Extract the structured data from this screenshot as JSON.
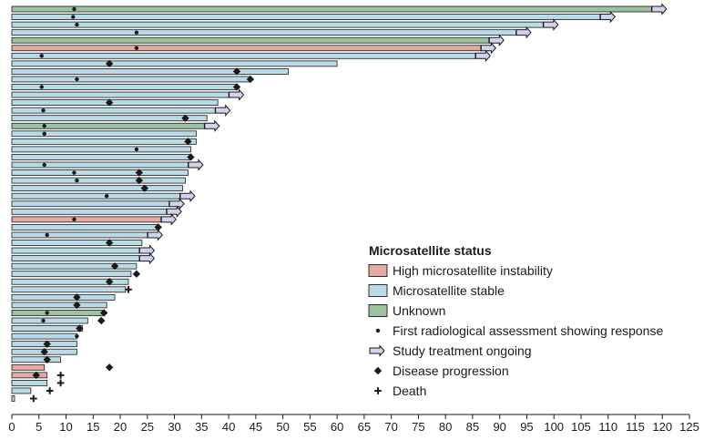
{
  "chart_data": {
    "type": "swimmer",
    "x_ticks": [
      0,
      5,
      10,
      15,
      20,
      25,
      30,
      35,
      40,
      45,
      50,
      55,
      60,
      65,
      70,
      75,
      80,
      85,
      90,
      95,
      100,
      105,
      110,
      115,
      120,
      125
    ],
    "xlim": [
      0,
      125
    ],
    "colors": {
      "msi_high": "#e4aaa4",
      "mss": "#b9dbe8",
      "unknown": "#9ec2a0",
      "outline": "#1a1a1a",
      "arrow_fill": "#cfd3ee"
    },
    "legend": {
      "title": "Microsatellite status",
      "entries": [
        {
          "key": "msi_high",
          "kind": "box",
          "label": "High microsatellite instability"
        },
        {
          "key": "mss",
          "kind": "box",
          "label": "Microsatellite stable"
        },
        {
          "key": "unknown",
          "kind": "box",
          "label": "Unknown"
        },
        {
          "key": "response",
          "kind": "dot",
          "label": "First radiological assessment showing response"
        },
        {
          "key": "ongoing",
          "kind": "arrow",
          "label": "Study treatment ongoing"
        },
        {
          "key": "progression",
          "kind": "diamond",
          "label": "Disease progression"
        },
        {
          "key": "death",
          "kind": "plus",
          "label": "Death"
        }
      ]
    },
    "patients": [
      {
        "status": "unknown",
        "duration": 118,
        "ongoing": true,
        "response": 11.5
      },
      {
        "status": "mss",
        "duration": 108.5,
        "ongoing": true,
        "response": 11.3
      },
      {
        "status": "mss",
        "duration": 98,
        "ongoing": true,
        "response": 12
      },
      {
        "status": "mss",
        "duration": 93,
        "ongoing": true,
        "response": 23
      },
      {
        "status": "unknown",
        "duration": 88,
        "ongoing": true
      },
      {
        "status": "msi_high",
        "duration": 86.5,
        "ongoing": true,
        "response": 23
      },
      {
        "status": "mss",
        "duration": 85.5,
        "ongoing": true,
        "response": 5.5
      },
      {
        "status": "mss",
        "duration": 60,
        "progression": 18
      },
      {
        "status": "mss",
        "duration": 51,
        "progression": 41.5
      },
      {
        "status": "mss",
        "duration": 44,
        "progression": 44,
        "response": 12
      },
      {
        "status": "mss",
        "duration": 41.5,
        "progression": 41.5,
        "response": 5.5
      },
      {
        "status": "mss",
        "duration": 40,
        "ongoing": true
      },
      {
        "status": "mss",
        "duration": 38,
        "progression": 18
      },
      {
        "status": "mss",
        "duration": 37.5,
        "ongoing": true,
        "response": 5.8
      },
      {
        "status": "mss",
        "duration": 36,
        "progression": 32
      },
      {
        "status": "unknown",
        "duration": 35.5,
        "ongoing": true,
        "response": 6
      },
      {
        "status": "mss",
        "duration": 34,
        "response": 6
      },
      {
        "status": "mss",
        "duration": 34,
        "progression": 32.5
      },
      {
        "status": "mss",
        "duration": 33,
        "response": 23
      },
      {
        "status": "mss",
        "duration": 33,
        "progression": 33
      },
      {
        "status": "mss",
        "duration": 32.5,
        "ongoing": true,
        "response": 6
      },
      {
        "status": "mss",
        "duration": 32.5,
        "progression": 23.5,
        "response": 11.5
      },
      {
        "status": "mss",
        "duration": 32,
        "progression": 23.5,
        "response": 12
      },
      {
        "status": "mss",
        "duration": 31.5,
        "progression": 24.5
      },
      {
        "status": "mss",
        "duration": 31,
        "ongoing": true,
        "response": 17.5
      },
      {
        "status": "mss",
        "duration": 29,
        "ongoing": true
      },
      {
        "status": "mss",
        "duration": 28.5,
        "ongoing": true
      },
      {
        "status": "msi_high",
        "duration": 27.5,
        "ongoing": true,
        "response": 11.5
      },
      {
        "status": "mss",
        "duration": 27,
        "progression": 27
      },
      {
        "status": "mss",
        "duration": 25,
        "ongoing": true,
        "response": 6.5
      },
      {
        "status": "mss",
        "duration": 24,
        "progression": 18
      },
      {
        "status": "mss",
        "duration": 23.5,
        "ongoing": true
      },
      {
        "status": "mss",
        "duration": 23.5,
        "ongoing": true
      },
      {
        "status": "mss",
        "duration": 23,
        "progression": 19
      },
      {
        "status": "mss",
        "duration": 22,
        "progression": 23
      },
      {
        "status": "mss",
        "duration": 21.5,
        "progression": 18
      },
      {
        "status": "mss",
        "duration": 21,
        "death": 21.5
      },
      {
        "status": "mss",
        "duration": 19,
        "progression": 12
      },
      {
        "status": "mss",
        "duration": 17.5,
        "progression": 12
      },
      {
        "status": "unknown",
        "duration": 17,
        "progression": 17,
        "response": 6.5
      },
      {
        "status": "mss",
        "duration": 14,
        "progression": 16.5,
        "response": 5.8
      },
      {
        "status": "mss",
        "duration": 13,
        "progression": 12.5
      },
      {
        "status": "mss",
        "duration": 12,
        "response": 12
      },
      {
        "status": "mss",
        "duration": 12,
        "progression": 6.5
      },
      {
        "status": "mss",
        "duration": 12,
        "progression": 6
      },
      {
        "status": "mss",
        "duration": 9,
        "progression": 6.5
      },
      {
        "status": "msi_high",
        "duration": 6,
        "progression": 18
      },
      {
        "status": "msi_high",
        "duration": 6.5,
        "progression": 4.5,
        "death": 9
      },
      {
        "status": "mss",
        "duration": 6.5,
        "death": 9
      },
      {
        "status": "mss",
        "duration": 3.5,
        "death": 7
      },
      {
        "status": "mss",
        "duration": 0.5,
        "death": 4
      }
    ]
  }
}
